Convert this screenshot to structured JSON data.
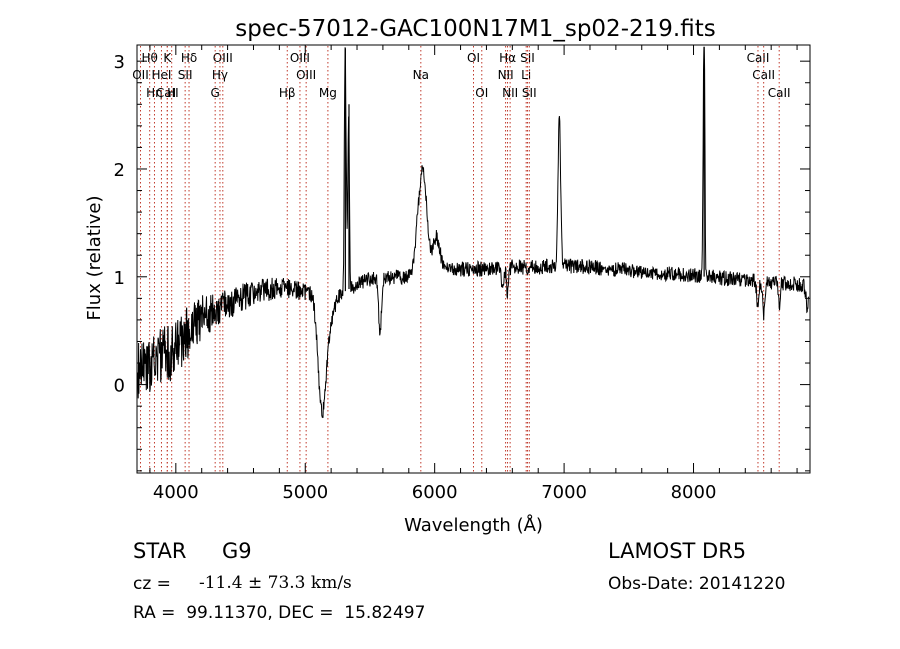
{
  "chart_data": {
    "type": "line",
    "title": "spec-57012-GAC100N17M1_sp02-219.fits",
    "xlabel": "Wavelength (Å)",
    "ylabel": "Flux (relative)",
    "xlim": [
      3700,
      8900
    ],
    "ylim": [
      -0.82,
      3.15
    ],
    "xticks": [
      4000,
      5000,
      6000,
      7000,
      8000
    ],
    "yticks": [
      0,
      1,
      2,
      3
    ],
    "line_markers": [
      {
        "label": "OII",
        "wave": 3727,
        "row": 2
      },
      {
        "label": "Hθ",
        "wave": 3798,
        "row": 1
      },
      {
        "label": "Hη",
        "wave": 3835,
        "row": 3
      },
      {
        "label": "CaII",
        "wave": 3934,
        "row": 3
      },
      {
        "label": "K",
        "wave": 3934,
        "row": 1
      },
      {
        "label": "HeI",
        "wave": 3889,
        "row": 2
      },
      {
        "label": "H",
        "wave": 3968,
        "row": 3
      },
      {
        "label": "Hδ",
        "wave": 4102,
        "row": 1
      },
      {
        "label": "SII",
        "wave": 4072,
        "row": 2
      },
      {
        "label": "OIII",
        "wave": 4363,
        "row": 1
      },
      {
        "label": "Hγ",
        "wave": 4341,
        "row": 2
      },
      {
        "label": "G",
        "wave": 4304,
        "row": 3
      },
      {
        "label": "OIII",
        "wave": 4959,
        "row": 1
      },
      {
        "label": "OIII",
        "wave": 5007,
        "row": 2
      },
      {
        "label": "Hβ",
        "wave": 4861,
        "row": 3
      },
      {
        "label": "Mg",
        "wave": 5175,
        "row": 3
      },
      {
        "label": "Na",
        "wave": 5893,
        "row": 2
      },
      {
        "label": "OI",
        "wave": 6300,
        "row": 1
      },
      {
        "label": "OI",
        "wave": 6364,
        "row": 3
      },
      {
        "label": "Hα",
        "wave": 6563,
        "row": 1
      },
      {
        "label": "NII",
        "wave": 6548,
        "row": 2
      },
      {
        "label": "NII",
        "wave": 6583,
        "row": 3
      },
      {
        "label": "SII",
        "wave": 6717,
        "row": 1
      },
      {
        "label": "Li",
        "wave": 6707,
        "row": 2
      },
      {
        "label": "SII",
        "wave": 6731,
        "row": 3
      },
      {
        "label": "CaII",
        "wave": 8498,
        "row": 1
      },
      {
        "label": "CaII",
        "wave": 8542,
        "row": 2
      },
      {
        "label": "CaII",
        "wave": 8662,
        "row": 3
      }
    ],
    "anchors": [
      [
        3700,
        0.12
      ],
      [
        3800,
        0.2
      ],
      [
        3900,
        0.25
      ],
      [
        4000,
        0.35
      ],
      [
        4100,
        0.5
      ],
      [
        4200,
        0.62
      ],
      [
        4300,
        0.68
      ],
      [
        4400,
        0.74
      ],
      [
        4500,
        0.8
      ],
      [
        4600,
        0.85
      ],
      [
        4700,
        0.88
      ],
      [
        4800,
        0.9
      ],
      [
        4900,
        0.88
      ],
      [
        5000,
        0.86
      ],
      [
        5100,
        0.85
      ],
      [
        5200,
        0.84
      ],
      [
        5300,
        0.86
      ],
      [
        5400,
        0.93
      ],
      [
        5500,
        0.98
      ],
      [
        5600,
        0.99
      ],
      [
        5700,
        1.0
      ],
      [
        5800,
        1.0
      ],
      [
        5900,
        1.02
      ],
      [
        6000,
        1.04
      ],
      [
        6100,
        1.06
      ],
      [
        6200,
        1.07
      ],
      [
        6300,
        1.07
      ],
      [
        6400,
        1.08
      ],
      [
        6500,
        1.08
      ],
      [
        6600,
        1.09
      ],
      [
        6700,
        1.09
      ],
      [
        6800,
        1.09
      ],
      [
        6900,
        1.1
      ],
      [
        7000,
        1.1
      ],
      [
        7200,
        1.09
      ],
      [
        7400,
        1.07
      ],
      [
        7600,
        1.05
      ],
      [
        7800,
        1.03
      ],
      [
        8000,
        1.01
      ],
      [
        8200,
        0.99
      ],
      [
        8400,
        0.97
      ],
      [
        8600,
        0.95
      ],
      [
        8800,
        0.93
      ],
      [
        8900,
        0.91
      ]
    ],
    "features": [
      [
        5128,
        0.03,
        -1.0
      ],
      [
        5180,
        0.04,
        -0.25
      ],
      [
        5308,
        0.006,
        2.2
      ],
      [
        5318,
        0.004,
        0.5
      ],
      [
        5335,
        0.006,
        1.55
      ],
      [
        5578,
        0.01,
        -0.55
      ],
      [
        5890,
        0.03,
        0.65
      ],
      [
        5920,
        0.02,
        0.35
      ],
      [
        5960,
        0.06,
        0.2
      ],
      [
        6020,
        0.02,
        0.2
      ],
      [
        6525,
        0.01,
        -0.18
      ],
      [
        6563,
        0.008,
        -0.25
      ],
      [
        6963,
        0.01,
        1.38
      ],
      [
        8080,
        0.006,
        2.0
      ],
      [
        8085,
        0.004,
        0.8
      ],
      [
        8495,
        0.008,
        -0.22
      ],
      [
        8542,
        0.008,
        -0.3
      ],
      [
        8662,
        0.008,
        -0.2
      ],
      [
        8880,
        0.01,
        -0.2
      ]
    ],
    "info": {
      "object_class": "STAR",
      "subclass": "G9",
      "survey": "LAMOST DR5",
      "redshift_prefix": "cz =",
      "redshift_value": "-11.4 ± 73.3 km/s",
      "obs_date": "Obs-Date: 20141220",
      "coords": "RA =  99.11370, DEC =  15.82497"
    }
  }
}
